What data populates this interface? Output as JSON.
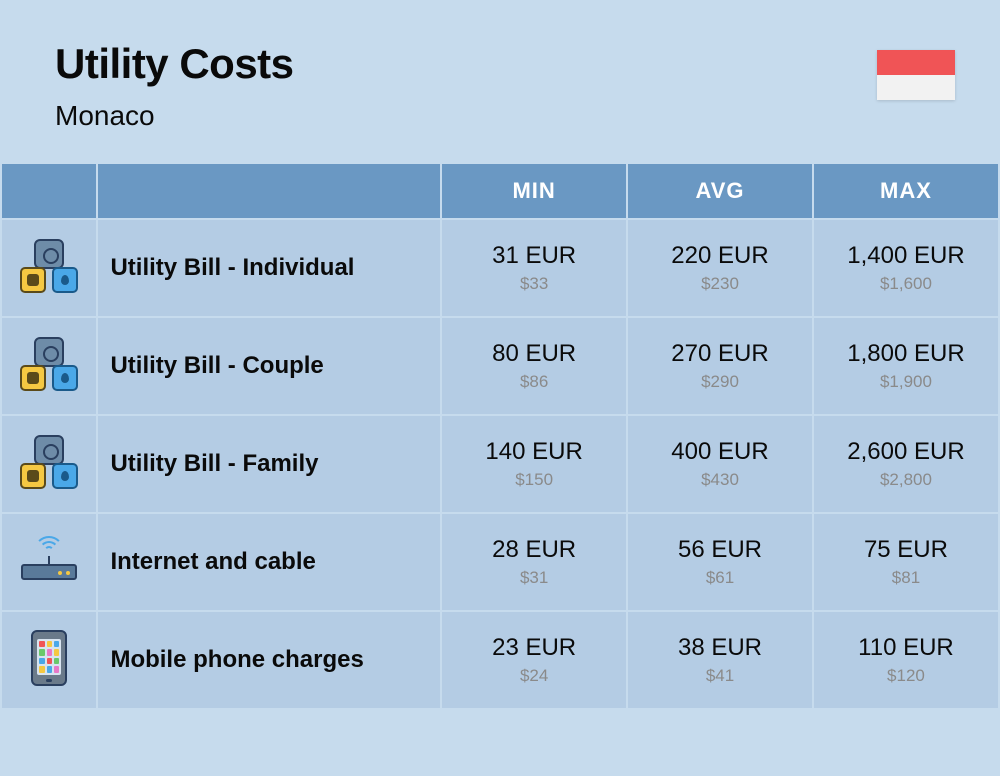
{
  "header": {
    "title": "Utility Costs",
    "subtitle": "Monaco",
    "flag": {
      "top_color": "#f05456",
      "bottom_color": "#f2f2f2"
    }
  },
  "columns": {
    "min": "MIN",
    "avg": "AVG",
    "max": "MAX"
  },
  "rows": [
    {
      "icon": "utility",
      "label": "Utility Bill - Individual",
      "min": {
        "primary": "31 EUR",
        "secondary": "$33"
      },
      "avg": {
        "primary": "220 EUR",
        "secondary": "$230"
      },
      "max": {
        "primary": "1,400 EUR",
        "secondary": "$1,600"
      }
    },
    {
      "icon": "utility",
      "label": "Utility Bill - Couple",
      "min": {
        "primary": "80 EUR",
        "secondary": "$86"
      },
      "avg": {
        "primary": "270 EUR",
        "secondary": "$290"
      },
      "max": {
        "primary": "1,800 EUR",
        "secondary": "$1,900"
      }
    },
    {
      "icon": "utility",
      "label": "Utility Bill - Family",
      "min": {
        "primary": "140 EUR",
        "secondary": "$150"
      },
      "avg": {
        "primary": "400 EUR",
        "secondary": "$430"
      },
      "max": {
        "primary": "2,600 EUR",
        "secondary": "$2,800"
      }
    },
    {
      "icon": "router",
      "label": "Internet and cable",
      "min": {
        "primary": "28 EUR",
        "secondary": "$31"
      },
      "avg": {
        "primary": "56 EUR",
        "secondary": "$61"
      },
      "max": {
        "primary": "75 EUR",
        "secondary": "$81"
      }
    },
    {
      "icon": "phone",
      "label": "Mobile phone charges",
      "min": {
        "primary": "23 EUR",
        "secondary": "$24"
      },
      "avg": {
        "primary": "38 EUR",
        "secondary": "$41"
      },
      "max": {
        "primary": "110 EUR",
        "secondary": "$120"
      }
    }
  ],
  "colors": {
    "page_bg": "#c6dbed",
    "header_cell_bg": "#6a98c3",
    "header_text": "#ffffff",
    "row_bg": "#b4cce4",
    "primary_text": "#0a0a0a",
    "secondary_text": "#8a8a8a"
  }
}
